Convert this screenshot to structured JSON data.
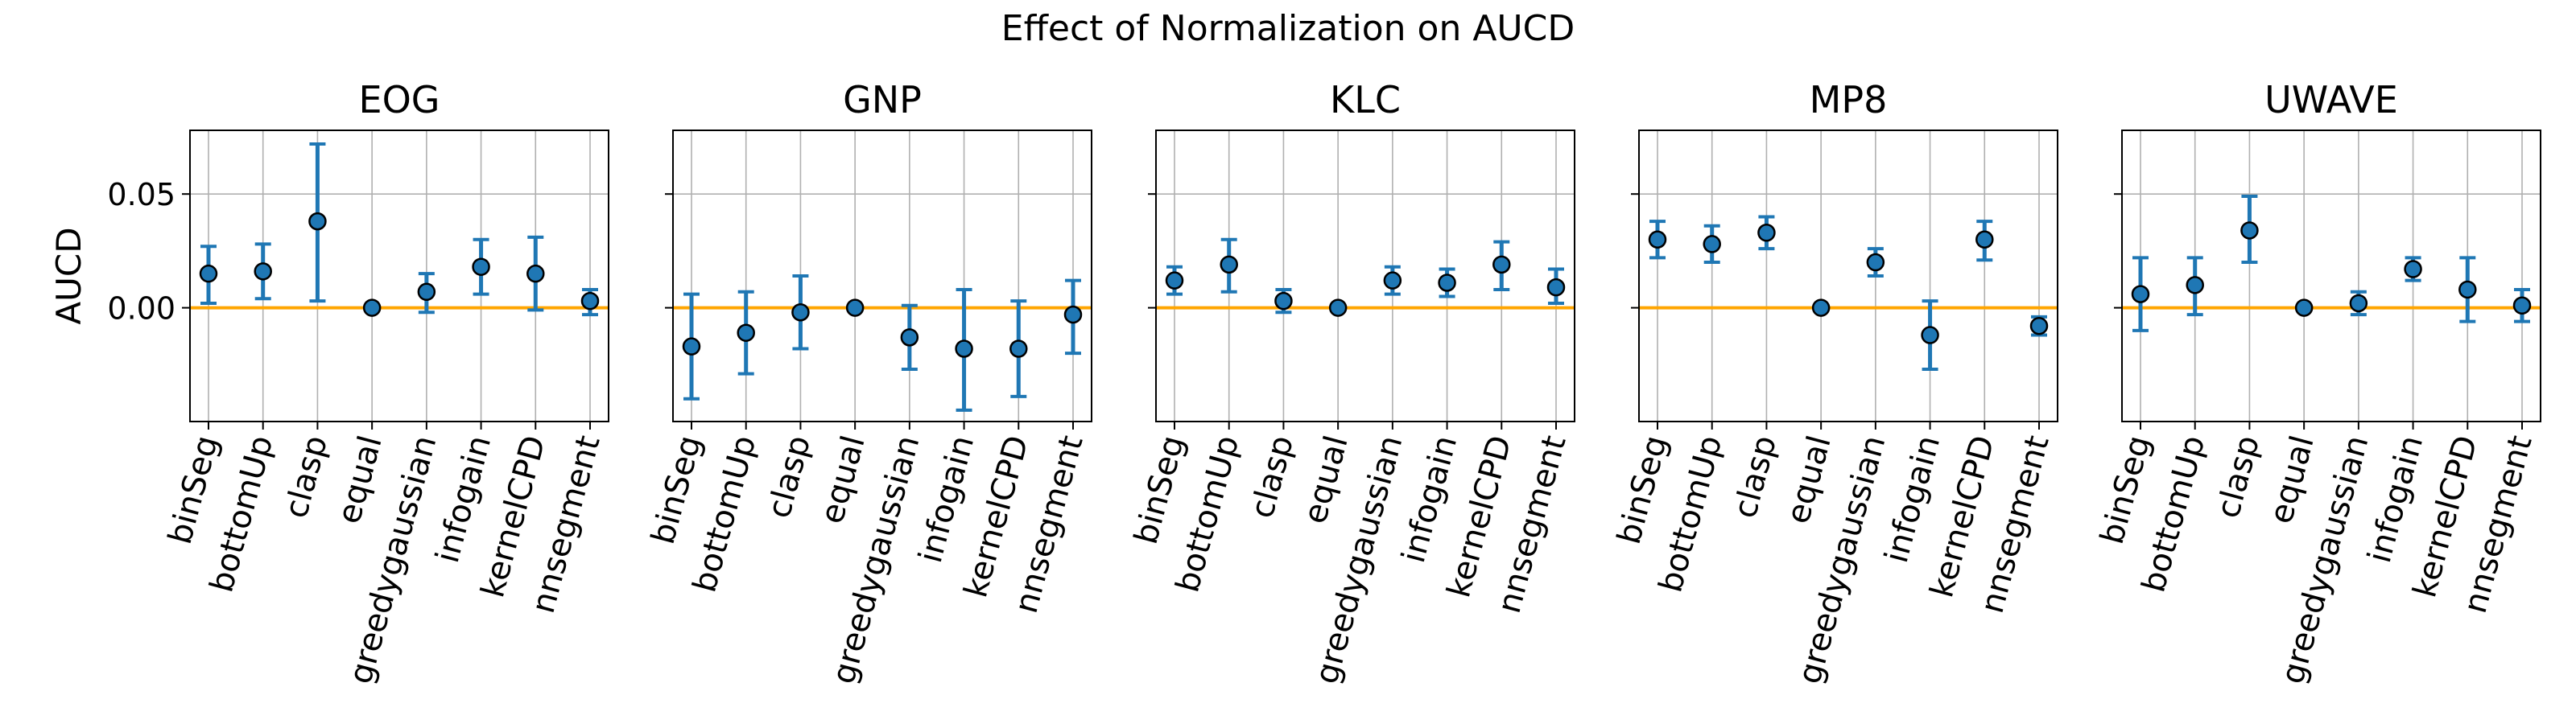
{
  "suptitle": "Effect of Normalization on AUCD",
  "colors": {
    "point_fill": "#1f77b4",
    "errorbar": "#1f77b4",
    "baseline": "#ffa500",
    "grid": "#b0b0b0",
    "axes": "#000000"
  },
  "chart_data": [
    {
      "type": "scatter",
      "title": "EOG",
      "ylabel": "AUCD",
      "xlabel": "",
      "categories": [
        "binSeg",
        "bottomUp",
        "clasp",
        "equal",
        "greedygaussian",
        "infogain",
        "kernelCPD",
        "nnsegment"
      ],
      "values": [
        0.015,
        0.016,
        0.038,
        0.0,
        0.007,
        0.018,
        0.015,
        0.003
      ],
      "err_low": [
        0.002,
        0.004,
        0.003,
        0.0,
        -0.002,
        0.006,
        -0.001,
        -0.003
      ],
      "err_high": [
        0.027,
        0.028,
        0.072,
        0.0,
        0.015,
        0.03,
        0.031,
        0.008
      ],
      "baseline": 0.0,
      "ylim": [
        -0.05,
        0.078
      ],
      "yticks": [
        0.0,
        0.05
      ],
      "ytick_labels": [
        "0.00",
        "0.05"
      ],
      "grid": true
    },
    {
      "type": "scatter",
      "title": "GNP",
      "ylabel": "",
      "xlabel": "",
      "categories": [
        "binSeg",
        "bottomUp",
        "clasp",
        "equal",
        "greedygaussian",
        "infogain",
        "kernelCPD",
        "nnsegment"
      ],
      "values": [
        -0.017,
        -0.011,
        -0.002,
        0.0,
        -0.013,
        -0.018,
        -0.018,
        -0.003
      ],
      "err_low": [
        -0.04,
        -0.029,
        -0.018,
        0.0,
        -0.027,
        -0.045,
        -0.039,
        -0.02
      ],
      "err_high": [
        0.006,
        0.007,
        0.014,
        0.0,
        0.001,
        0.008,
        0.003,
        0.012
      ],
      "baseline": 0.0,
      "ylim": [
        -0.05,
        0.078
      ],
      "yticks": [
        0.0,
        0.05
      ],
      "ytick_labels": [
        "",
        ""
      ],
      "grid": true
    },
    {
      "type": "scatter",
      "title": "KLC",
      "ylabel": "",
      "xlabel": "",
      "categories": [
        "binSeg",
        "bottomUp",
        "clasp",
        "equal",
        "greedygaussian",
        "infogain",
        "kernelCPD",
        "nnsegment"
      ],
      "values": [
        0.012,
        0.019,
        0.003,
        0.0,
        0.012,
        0.011,
        0.019,
        0.009
      ],
      "err_low": [
        0.006,
        0.007,
        -0.002,
        0.0,
        0.006,
        0.005,
        0.008,
        0.002
      ],
      "err_high": [
        0.018,
        0.03,
        0.008,
        0.0,
        0.018,
        0.017,
        0.029,
        0.017
      ],
      "baseline": 0.0,
      "ylim": [
        -0.05,
        0.078
      ],
      "yticks": [
        0.0,
        0.05
      ],
      "ytick_labels": [
        "",
        ""
      ],
      "grid": true
    },
    {
      "type": "scatter",
      "title": "MP8",
      "ylabel": "",
      "xlabel": "",
      "categories": [
        "binSeg",
        "bottomUp",
        "clasp",
        "equal",
        "greedygaussian",
        "infogain",
        "kernelCPD",
        "nnsegment"
      ],
      "values": [
        0.03,
        0.028,
        0.033,
        0.0,
        0.02,
        -0.012,
        0.03,
        -0.008
      ],
      "err_low": [
        0.022,
        0.02,
        0.026,
        0.0,
        0.014,
        -0.027,
        0.021,
        -0.012
      ],
      "err_high": [
        0.038,
        0.036,
        0.04,
        0.0,
        0.026,
        0.003,
        0.038,
        -0.004
      ],
      "baseline": 0.0,
      "ylim": [
        -0.05,
        0.078
      ],
      "yticks": [
        0.0,
        0.05
      ],
      "ytick_labels": [
        "",
        ""
      ],
      "grid": true
    },
    {
      "type": "scatter",
      "title": "UWAVE",
      "ylabel": "",
      "xlabel": "",
      "categories": [
        "binSeg",
        "bottomUp",
        "clasp",
        "equal",
        "greedygaussian",
        "infogain",
        "kernelCPD",
        "nnsegment"
      ],
      "values": [
        0.006,
        0.01,
        0.034,
        0.0,
        0.002,
        0.017,
        0.008,
        0.001
      ],
      "err_low": [
        -0.01,
        -0.003,
        0.02,
        0.0,
        -0.003,
        0.012,
        -0.006,
        -0.006
      ],
      "err_high": [
        0.022,
        0.022,
        0.049,
        0.0,
        0.007,
        0.022,
        0.022,
        0.008
      ],
      "baseline": 0.0,
      "ylim": [
        -0.05,
        0.078
      ],
      "yticks": [
        0.0,
        0.05
      ],
      "ytick_labels": [
        "",
        ""
      ],
      "grid": true
    }
  ]
}
